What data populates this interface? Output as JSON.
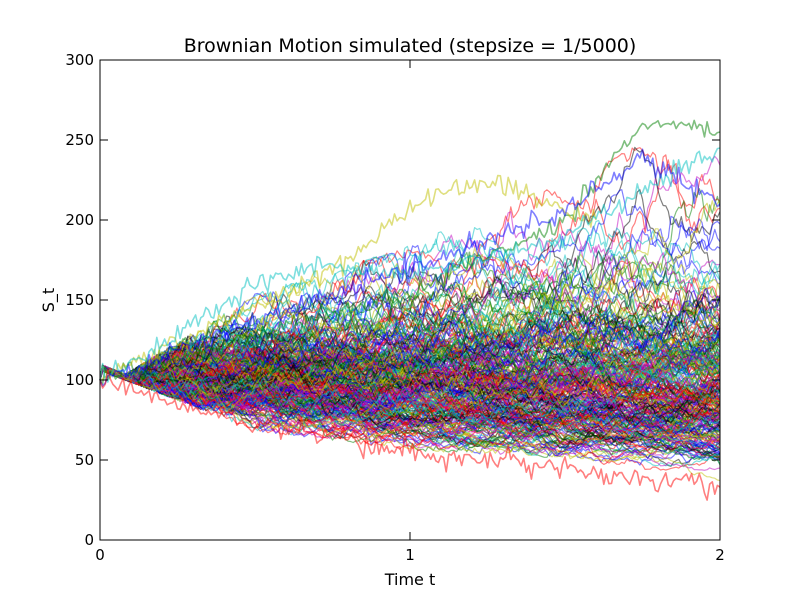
{
  "chart_data": {
    "type": "line",
    "title": "Brownian Motion simulated (stepsize = 1/5000)",
    "xlabel": "Time t",
    "ylabel": "S_t",
    "xlim": [
      0,
      2
    ],
    "ylim": [
      0,
      300
    ],
    "x_ticks": [
      "0",
      "1",
      "2"
    ],
    "y_ticks": [
      "0",
      "50",
      "100",
      "150",
      "200",
      "250",
      "300"
    ],
    "x_tick_values": [
      0,
      1,
      2
    ],
    "y_tick_values": [
      0,
      50,
      100,
      150,
      200,
      250,
      300
    ],
    "grid": false,
    "legend": "none",
    "start_value": 100,
    "time_range": [
      0,
      2
    ],
    "line_opacity": 0.5,
    "colors": [
      "#0000ff",
      "#008000",
      "#ff0000",
      "#00bfbf",
      "#bf00bf",
      "#bfbf00",
      "#000000"
    ],
    "envelope": {
      "t": [
        0,
        0.5,
        1,
        1.5,
        2
      ],
      "upper": [
        100,
        160,
        190,
        235,
        272
      ],
      "lower": [
        100,
        62,
        50,
        45,
        30
      ]
    },
    "highlighted_series": [
      {
        "color": "#008000",
        "t": [
          0,
          1,
          1.5,
          1.75,
          2
        ],
        "values": [
          100,
          155,
          200,
          262,
          255
        ]
      },
      {
        "color": "#bfbf00",
        "t": [
          0,
          0.8,
          1,
          1.25,
          1.6
        ],
        "values": [
          100,
          175,
          208,
          225,
          200
        ]
      },
      {
        "color": "#00bfbf",
        "t": [
          0,
          0.5,
          0.7,
          1,
          1.5,
          2
        ],
        "values": [
          100,
          160,
          172,
          165,
          190,
          245
        ]
      },
      {
        "color": "#0000ff",
        "t": [
          0,
          1,
          1.5,
          1.75,
          2
        ],
        "values": [
          100,
          170,
          205,
          240,
          210
        ]
      },
      {
        "color": "#ff0000",
        "t": [
          0,
          0.5,
          1,
          1.5,
          2
        ],
        "values": [
          100,
          72,
          55,
          44,
          33
        ]
      }
    ]
  }
}
